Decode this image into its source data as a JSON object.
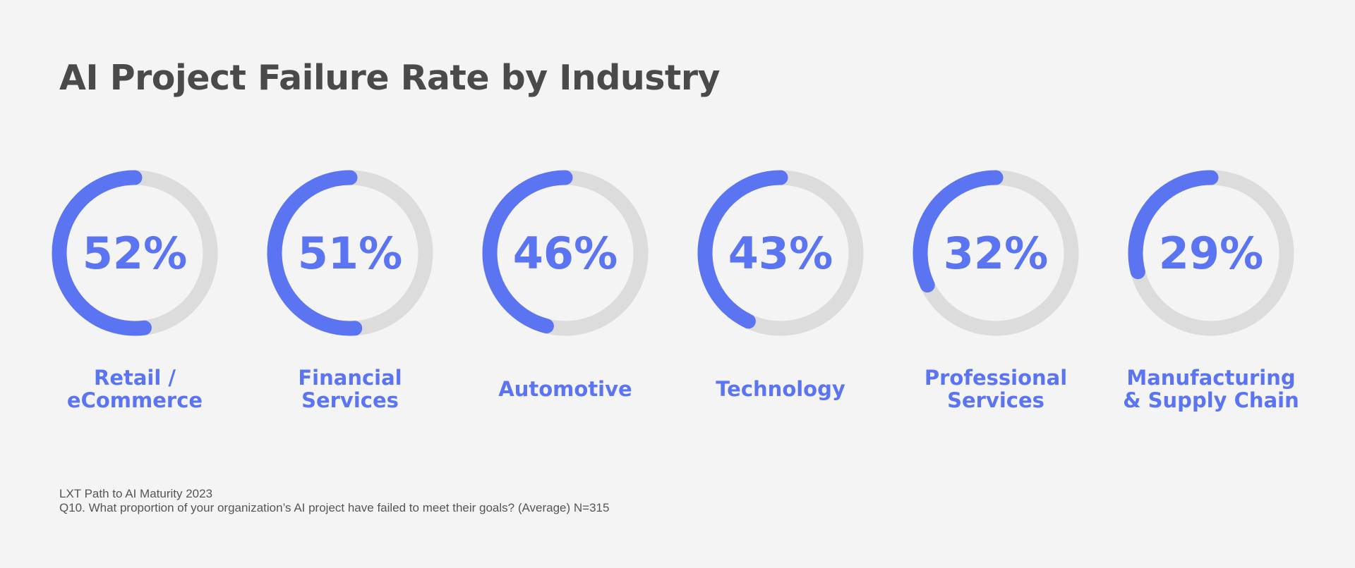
{
  "chart_data": {
    "type": "donut",
    "title": "AI Project Failure Rate by Industry",
    "unit": "%",
    "categories": [
      [
        "Retail /",
        "eCommerce"
      ],
      [
        "Financial",
        "Services"
      ],
      [
        "Automotive"
      ],
      [
        "Technology"
      ],
      [
        "Professional",
        "Services"
      ],
      [
        "Manufacturing",
        "& Supply Chain"
      ]
    ],
    "values": [
      52,
      51,
      46,
      43,
      32,
      29
    ],
    "value_labels": [
      "52%",
      "51%",
      "46%",
      "43%",
      "32%",
      "29%"
    ],
    "ylim": [
      0,
      100
    ],
    "colors": {
      "fill": "#5b74f2",
      "track": "#dcdcdc",
      "title": "#4a4a4a",
      "background": "#f4f4f4"
    }
  },
  "footnote": {
    "source": "LXT Path to AI Maturity 2023",
    "question": "Q10. What proportion of your organization’s AI project have failed to meet their goals? (Average) N=315"
  }
}
